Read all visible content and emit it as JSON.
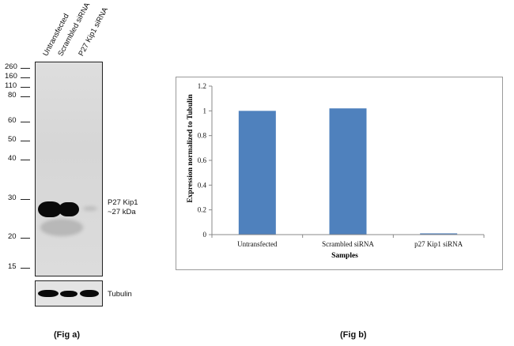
{
  "fig_a": {
    "lanes": [
      "Untransfected",
      "Scrambled siRNA",
      "P27 Kip1 siRNA"
    ],
    "markers": [
      "260",
      "160",
      "110",
      "80",
      "60",
      "50",
      "40",
      "30",
      "20",
      "15"
    ],
    "band_label_line1": "P27 Kip1",
    "band_label_line2": "~27 kDa",
    "loading_control_label": "Tubulin",
    "caption": "(Fig a)"
  },
  "fig_b": {
    "caption": "(Fig b)"
  },
  "chart_data": {
    "type": "bar",
    "categories": [
      "Untransfected",
      "Scrambled siRNA",
      "p27 Kip1 siRNA"
    ],
    "values": [
      1.0,
      1.02,
      0.01
    ],
    "xlabel": "Samples",
    "ylabel": "Expression normalized to Tubulin",
    "ylim": [
      0,
      1.2
    ],
    "yticks": [
      "0",
      "0.2",
      "0.4",
      "0.6",
      "0.8",
      "1",
      "1.2"
    ],
    "bar_color": "#4f81bd",
    "grid": false
  }
}
